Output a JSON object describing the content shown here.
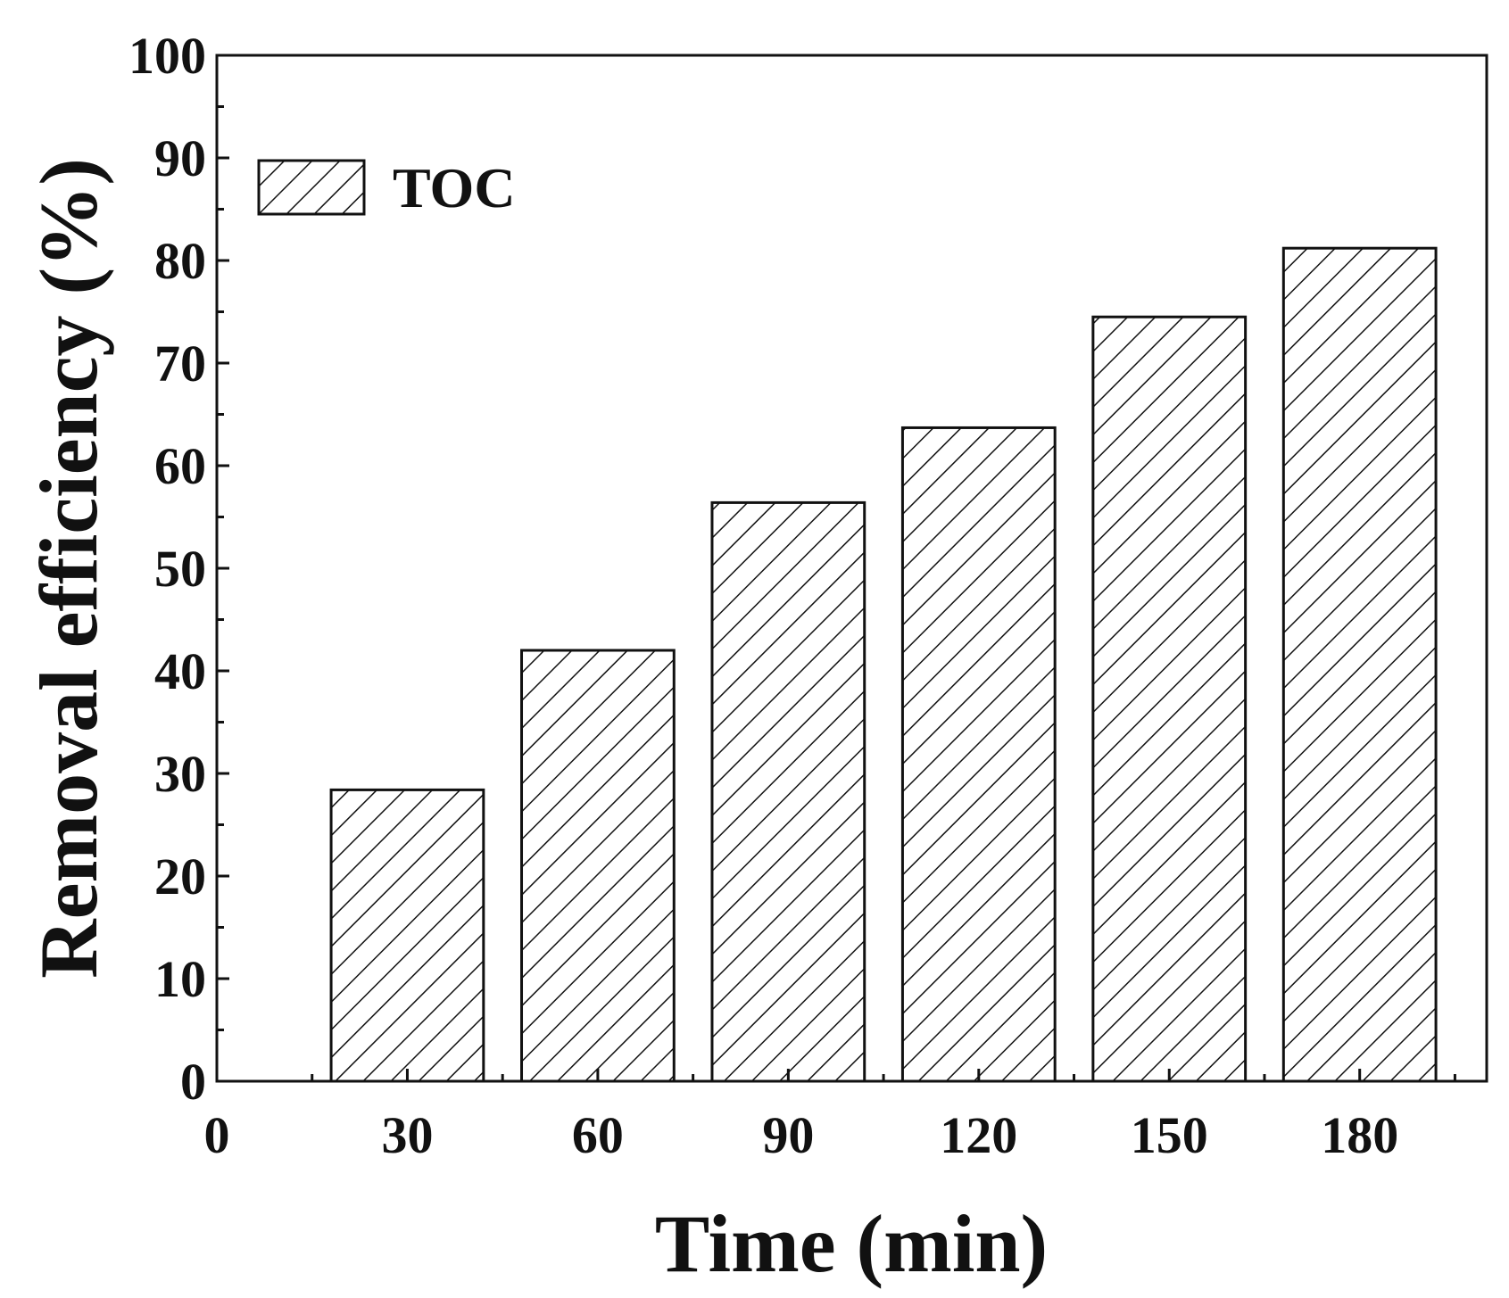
{
  "chart_data": {
    "type": "bar",
    "title": "",
    "xlabel": "Time (min)",
    "ylabel": "Removal efficiency (%)",
    "categories": [
      "30",
      "60",
      "90",
      "120",
      "150",
      "180"
    ],
    "x": [
      30,
      60,
      90,
      120,
      150,
      180
    ],
    "series": [
      {
        "name": "TOC",
        "values": [
          28.4,
          42.0,
          56.4,
          63.7,
          74.5,
          81.2
        ]
      }
    ],
    "xlim": [
      0,
      200
    ],
    "ylim": [
      0,
      100
    ],
    "xticks": [
      "0",
      "30",
      "60",
      "90",
      "120",
      "150",
      "180"
    ],
    "yticks": [
      "0",
      "10",
      "20",
      "30",
      "40",
      "50",
      "60",
      "70",
      "80",
      "90",
      "100"
    ],
    "grid": false,
    "legend_position": "top-left",
    "bar_fill": "hatched",
    "colors": {
      "stroke": "#111111",
      "fill": "#ffffff"
    }
  }
}
